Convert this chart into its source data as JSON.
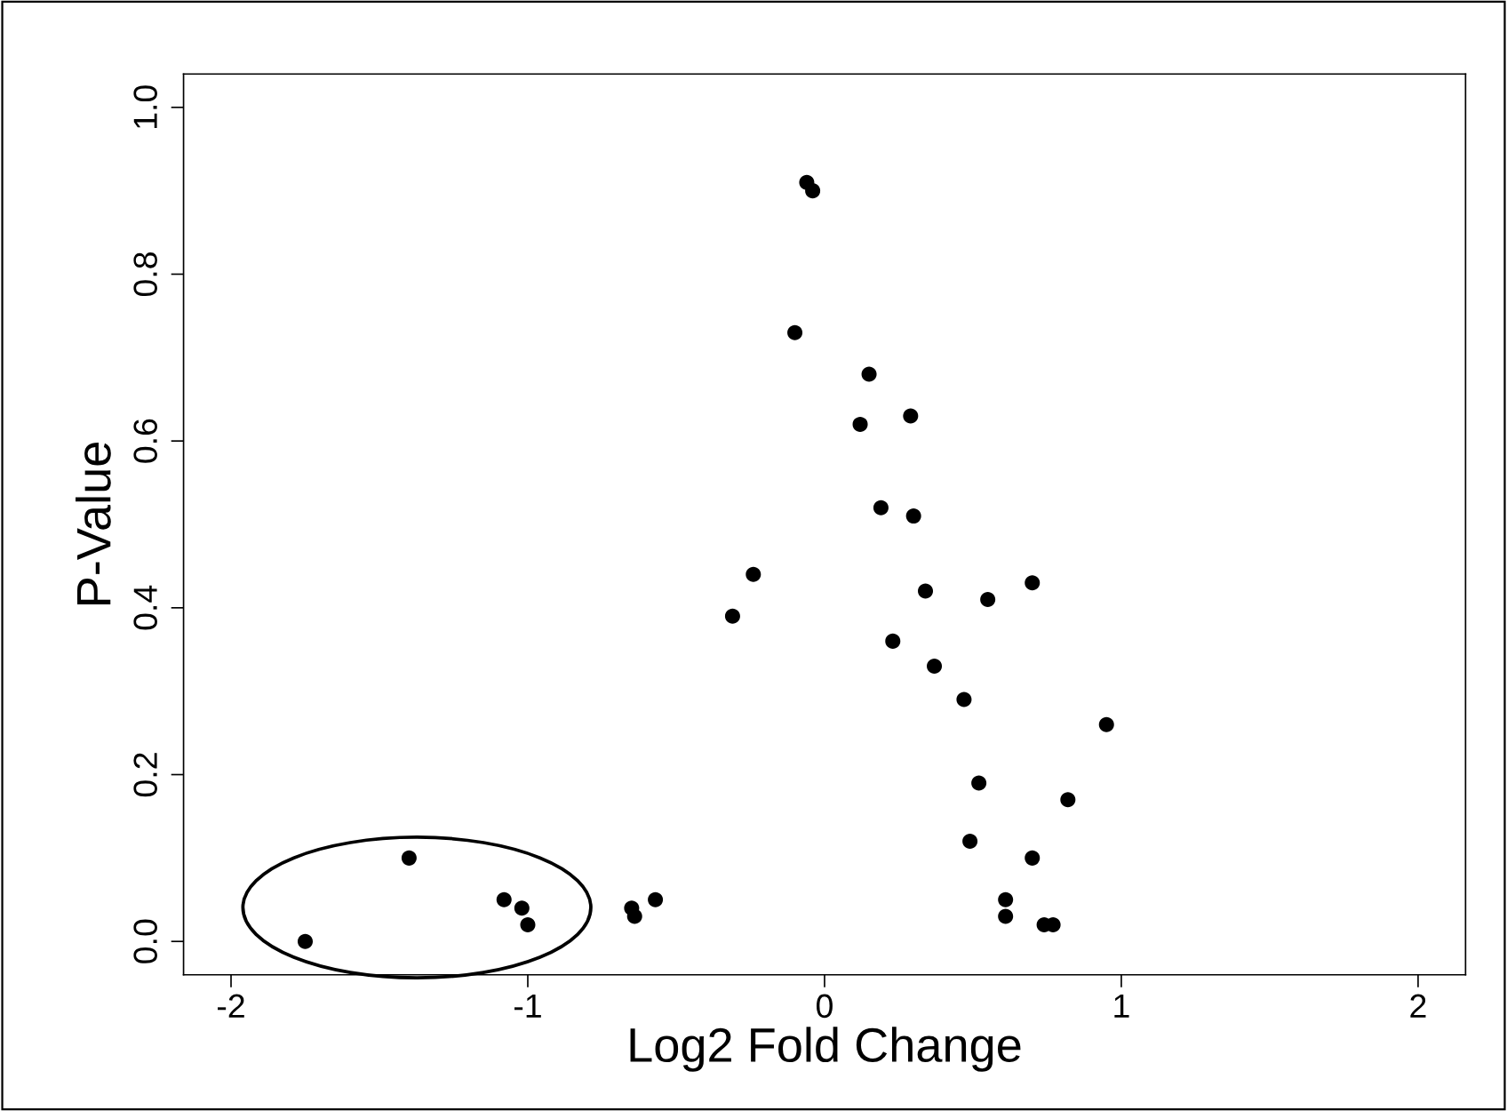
{
  "chart_data": {
    "type": "scatter",
    "xlabel": "Log2 Fold Change",
    "ylabel": "P-Value",
    "x": [
      -1.75,
      -1.4,
      -1.08,
      -1.02,
      -1.0,
      -0.65,
      -0.64,
      -0.57,
      -0.31,
      -0.24,
      -0.1,
      -0.06,
      -0.04,
      0.12,
      0.15,
      0.19,
      0.23,
      0.29,
      0.3,
      0.34,
      0.37,
      0.47,
      0.49,
      0.52,
      0.55,
      0.61,
      0.61,
      0.7,
      0.7,
      0.74,
      0.77,
      0.82,
      0.95
    ],
    "values": [
      0.0,
      0.1,
      0.05,
      0.04,
      0.02,
      0.04,
      0.03,
      0.05,
      0.39,
      0.44,
      0.73,
      0.91,
      0.9,
      0.62,
      0.68,
      0.52,
      0.36,
      0.63,
      0.51,
      0.42,
      0.33,
      0.29,
      0.12,
      0.19,
      0.41,
      0.05,
      0.03,
      0.43,
      0.1,
      0.02,
      0.02,
      0.17,
      0.26
    ],
    "color": "#000000",
    "marker": "circle",
    "grid": false,
    "xlim": [
      -2.16,
      2.16
    ],
    "ylim": [
      -0.04,
      1.04
    ],
    "xticks": [
      -2,
      -1,
      0,
      1,
      2
    ],
    "yticks": [
      {
        "value": 0,
        "label": "0.0"
      },
      0.2,
      0.4,
      0.6,
      0.8,
      {
        "value": 1,
        "label": "1.0"
      }
    ]
  }
}
